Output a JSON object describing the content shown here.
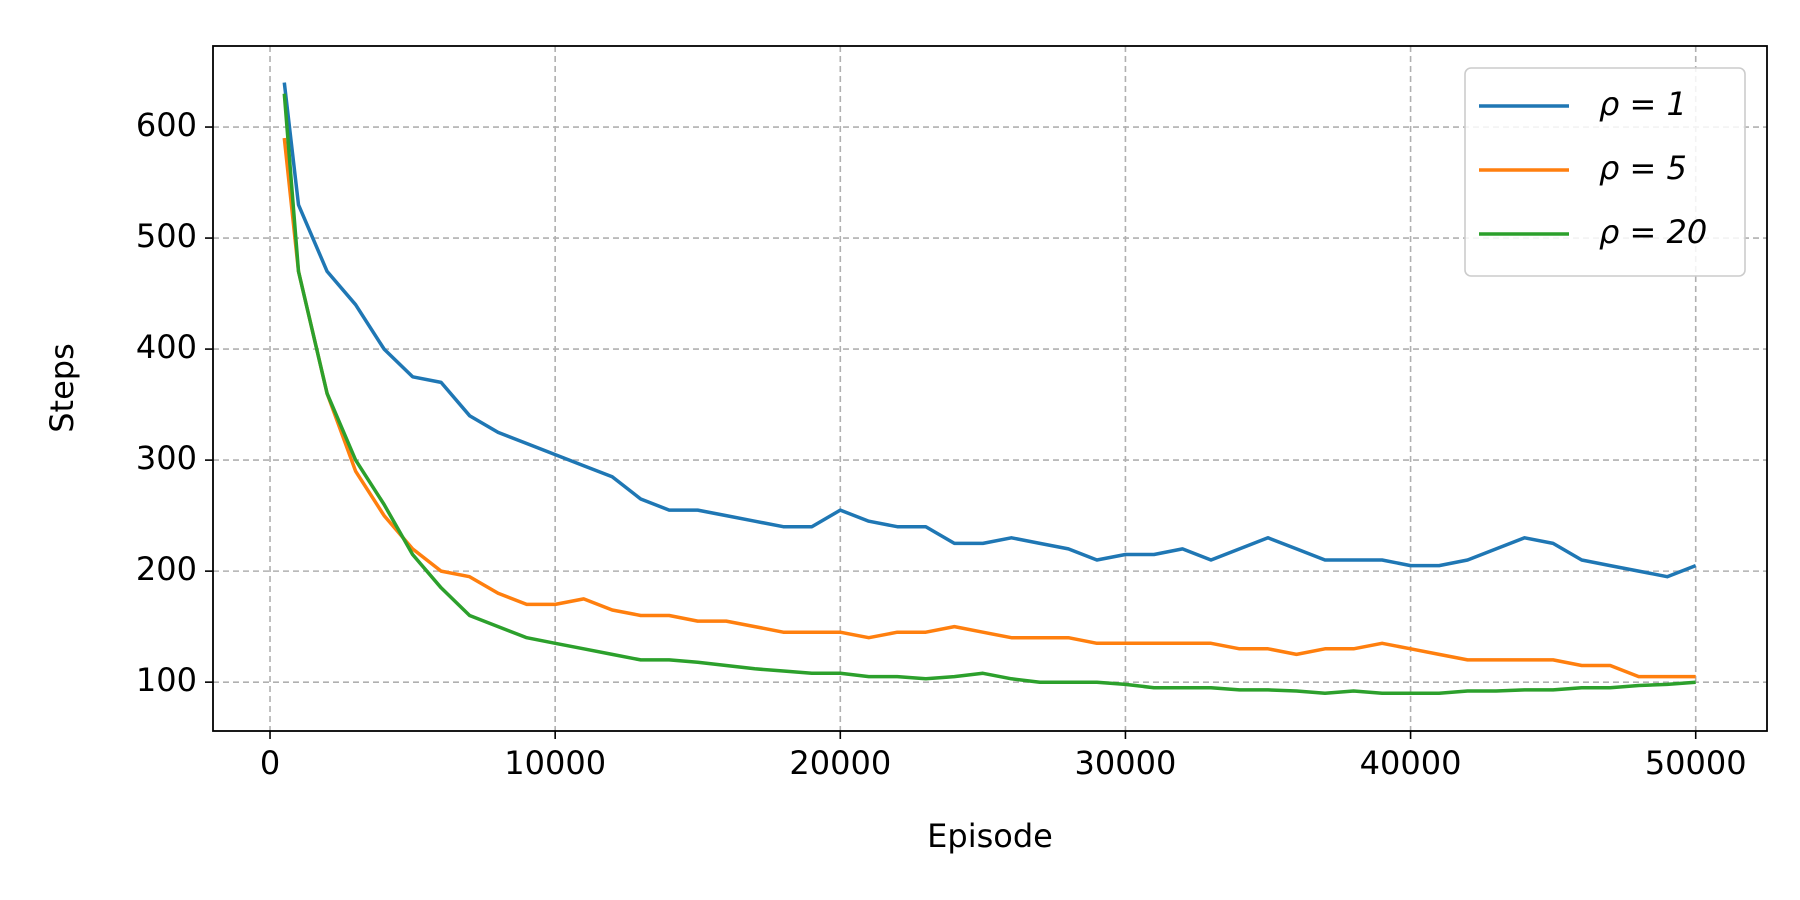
{
  "chart_data": {
    "type": "line",
    "x_label": "Episode",
    "y_label": "Steps",
    "x": [
      500,
      1000,
      2000,
      3000,
      4000,
      5000,
      6000,
      7000,
      8000,
      9000,
      10000,
      11000,
      12000,
      13000,
      14000,
      15000,
      16000,
      17000,
      18000,
      19000,
      20000,
      21000,
      22000,
      23000,
      24000,
      25000,
      26000,
      27000,
      28000,
      29000,
      30000,
      31000,
      32000,
      33000,
      34000,
      35000,
      36000,
      37000,
      38000,
      39000,
      40000,
      41000,
      42000,
      43000,
      44000,
      45000,
      46000,
      47000,
      48000,
      49000,
      50000
    ],
    "series": [
      {
        "name": "ρ = 1",
        "color": "#1f77b4",
        "values": [
          640,
          530,
          470,
          440,
          400,
          375,
          370,
          340,
          325,
          315,
          305,
          295,
          285,
          265,
          255,
          255,
          250,
          245,
          240,
          240,
          255,
          245,
          240,
          240,
          225,
          225,
          230,
          225,
          220,
          210,
          215,
          215,
          220,
          210,
          220,
          230,
          220,
          210,
          210,
          210,
          205,
          205,
          210,
          220,
          230,
          225,
          210,
          205,
          200,
          195,
          205
        ]
      },
      {
        "name": "ρ = 5",
        "color": "#ff7f0e",
        "values": [
          590,
          470,
          360,
          290,
          250,
          220,
          200,
          195,
          180,
          170,
          170,
          175,
          165,
          160,
          160,
          155,
          155,
          150,
          145,
          145,
          145,
          140,
          145,
          145,
          150,
          145,
          140,
          140,
          140,
          135,
          135,
          135,
          135,
          135,
          130,
          130,
          125,
          130,
          130,
          135,
          130,
          125,
          120,
          120,
          120,
          120,
          115,
          115,
          105,
          105,
          105
        ]
      },
      {
        "name": "ρ = 20",
        "color": "#2ca02c",
        "values": [
          630,
          470,
          360,
          300,
          260,
          215,
          185,
          160,
          150,
          140,
          135,
          130,
          125,
          120,
          120,
          118,
          115,
          112,
          110,
          108,
          108,
          105,
          105,
          103,
          105,
          108,
          103,
          100,
          100,
          100,
          98,
          95,
          95,
          95,
          93,
          93,
          92,
          90,
          92,
          90,
          90,
          90,
          92,
          92,
          93,
          93,
          95,
          95,
          97,
          98,
          100
        ]
      }
    ],
    "xlim": [
      -2000,
      52500
    ],
    "ylim": [
      56,
      673
    ],
    "xticks": [
      0,
      10000,
      20000,
      30000,
      40000,
      50000
    ],
    "yticks": [
      100,
      200,
      300,
      400,
      500,
      600
    ],
    "grid": true,
    "legend": "upper right"
  }
}
